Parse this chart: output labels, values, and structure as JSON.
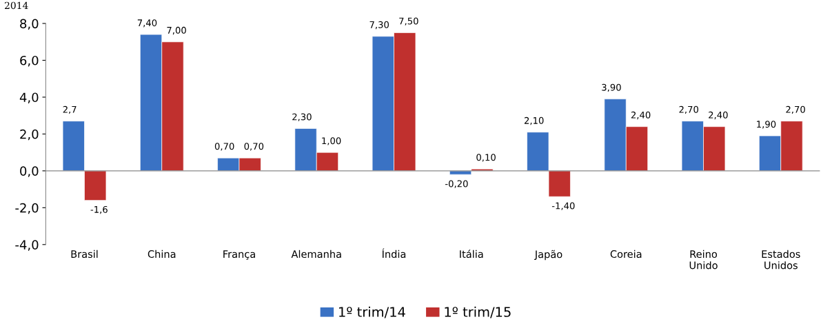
{
  "chart_data": {
    "type": "bar",
    "annotations": [
      "2014"
    ],
    "categories": [
      "Brasil",
      "China",
      "França",
      "Alemanha",
      "Índia",
      "Itália",
      "Japão",
      "Coreia",
      "Reino\nUnido",
      "Estados\nUnidos"
    ],
    "series": [
      {
        "name": "1º trim/14",
        "color": "#3a72c4",
        "values": [
          2.7,
          7.4,
          0.7,
          2.3,
          7.3,
          -0.2,
          2.1,
          3.9,
          2.7,
          1.9
        ],
        "value_labels": [
          "2,7",
          "7,40",
          "0,70",
          "2,30",
          "7,30",
          "-0,20",
          "2,10",
          "3,90",
          "2,70",
          "1,90"
        ]
      },
      {
        "name": "1º trim/15",
        "color": "#c0302e",
        "values": [
          -1.6,
          7.0,
          0.7,
          1.0,
          7.5,
          0.1,
          -1.4,
          2.4,
          2.4,
          2.7
        ],
        "value_labels": [
          "-1,6",
          "7,00",
          "0,70",
          "1,00",
          "7,50",
          "0,10",
          "-1,40",
          "2,40",
          "2,40",
          "2,70"
        ]
      }
    ],
    "ylim": [
      -4.0,
      8.0
    ],
    "yticks": [
      {
        "value": -4,
        "label": "-4,0"
      },
      {
        "value": -2,
        "label": "-2,0"
      },
      {
        "value": 0,
        "label": "0,0"
      },
      {
        "value": 2,
        "label": "2,0"
      },
      {
        "value": 4,
        "label": "4,0"
      },
      {
        "value": 6,
        "label": "6,0"
      },
      {
        "value": 8,
        "label": "8,0"
      }
    ],
    "legend": "bottom"
  }
}
